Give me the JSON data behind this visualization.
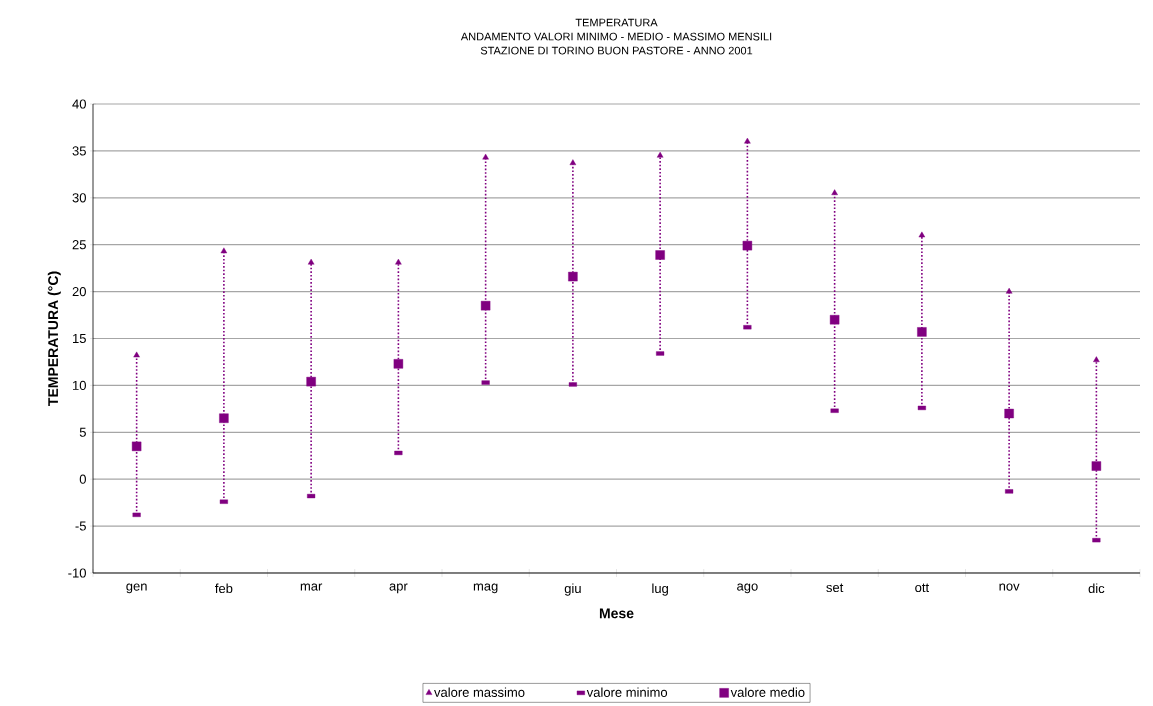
{
  "chart_data": {
    "type": "scatter",
    "title": "TEMPERATURA",
    "subtitle": "ANDAMENTO VALORI MINIMO - MEDIO - MASSIMO MENSILI",
    "annotations": [
      "STAZIONE DI TORINO BUON PASTORE - ANNO 2001"
    ],
    "xlabel": "Mese",
    "ylabel": "TEMPERATURA (°C)",
    "categories": [
      "gen",
      "feb",
      "mar",
      "apr",
      "mag",
      "giu",
      "lug",
      "ago",
      "set",
      "ott",
      "nov",
      "dic"
    ],
    "series": [
      {
        "name": "valore massimo",
        "color": "#800080",
        "marker": "triangle",
        "values": [
          13.2,
          24.3,
          23.1,
          23.1,
          34.3,
          33.7,
          34.5,
          36.0,
          30.5,
          26.0,
          20.0,
          12.7
        ]
      },
      {
        "name": "valore minimo",
        "color": "#800080",
        "values": [
          -3.8,
          -2.4,
          -1.8,
          2.8,
          10.3,
          10.1,
          13.4,
          16.2,
          7.3,
          7.6,
          -1.3,
          -6.5
        ]
      },
      {
        "name": "valore medio",
        "color": "#800080",
        "marker": "square",
        "values": [
          3.5,
          6.5,
          10.4,
          12.3,
          18.5,
          21.6,
          23.9,
          24.9,
          17.0,
          15.7,
          7.0,
          1.4
        ]
      }
    ],
    "ylim": [
      -10,
      40
    ],
    "yticks": [
      -10,
      -5,
      0,
      5,
      10,
      15,
      20,
      25,
      30,
      35,
      40
    ],
    "grid": "y",
    "legend": "bottom"
  }
}
